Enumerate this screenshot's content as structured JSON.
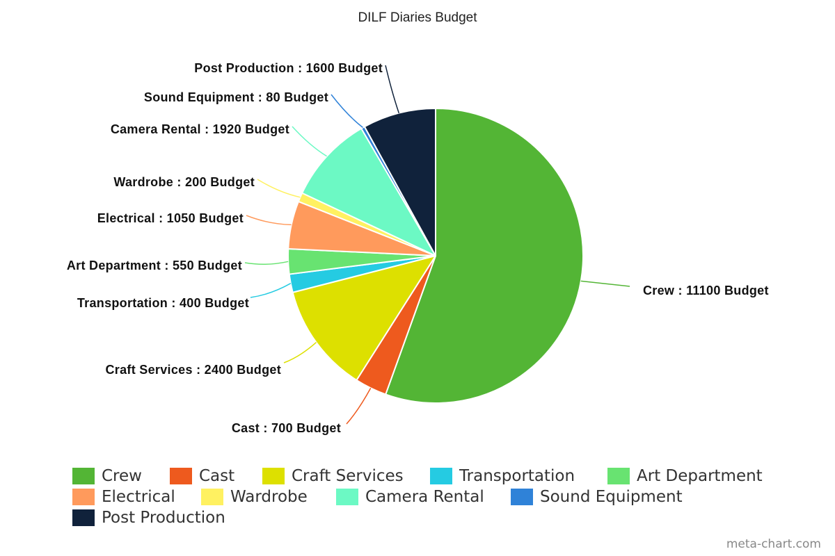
{
  "chart_data": {
    "type": "pie",
    "title": "DILF Diaries Budget",
    "label_suffix": "Budget",
    "slices": [
      {
        "name": "Crew",
        "value": 11100,
        "color": "#53b535",
        "label": "Crew : 11100 Budget"
      },
      {
        "name": "Cast",
        "value": 700,
        "color": "#ee5a1e",
        "label": "Cast : 700 Budget"
      },
      {
        "name": "Craft Services",
        "value": 2400,
        "color": "#dde000",
        "label": "Craft Services : 2400 Budget"
      },
      {
        "name": "Transportation",
        "value": 400,
        "color": "#25cbe2",
        "label": "Transportation : 400 Budget"
      },
      {
        "name": "Art Department",
        "value": 550,
        "color": "#68e371",
        "label": "Art Department : 550 Budget"
      },
      {
        "name": "Electrical",
        "value": 1050,
        "color": "#ff9a5c",
        "label": "Electrical : 1050 Budget"
      },
      {
        "name": "Wardrobe",
        "value": 200,
        "color": "#fff161",
        "label": "Wardrobe  : 200 Budget"
      },
      {
        "name": "Camera Rental",
        "value": 1920,
        "color": "#6cf9c4",
        "label": "Camera Rental : 1920 Budget"
      },
      {
        "name": "Sound Equipment",
        "value": 80,
        "color": "#2f82d8",
        "label": "Sound Equipment : 80 Budget"
      },
      {
        "name": "Post Production",
        "value": 1600,
        "color": "#10223b",
        "label": "Post Production : 1600 Budget"
      }
    ],
    "legend": {
      "placement": "bottom"
    }
  },
  "credit": "meta-chart.com"
}
